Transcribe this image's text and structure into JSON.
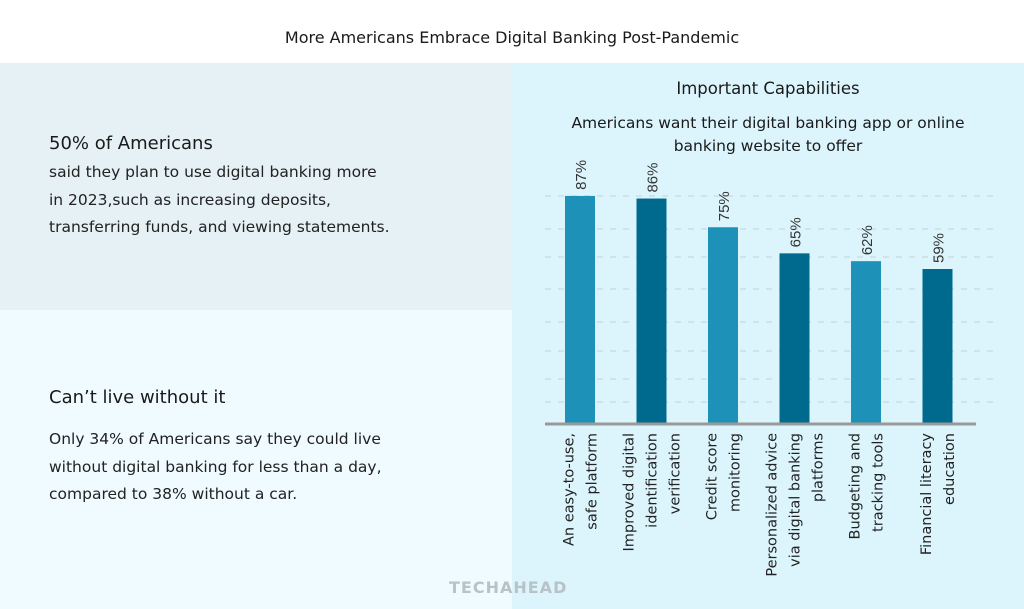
{
  "header": {
    "title": "More Americans Embrace Digital Banking Post-Pandemic"
  },
  "left": {
    "stat_heading": "50% of Americans",
    "stat_lines": [
      "said they plan to use digital banking more",
      "in 2023,such as increasing deposits,",
      "transferring funds, and viewing statements."
    ],
    "car_heading": "Can’t live without it",
    "car_lines": [
      "Only 34% of Americans say they could live",
      "without digital banking for less than a day,",
      "compared to 38% without a car."
    ]
  },
  "logo": "TECHAHEAD",
  "colors": {
    "light_bar": "#1e91b8",
    "dark_bar": "#006a8e",
    "axis": "#999999"
  },
  "chart_data": {
    "type": "bar",
    "title": "Important Capabilities",
    "subtitle_lines": [
      "Americans want their digital banking app or online",
      "banking website to offer"
    ],
    "categories": [
      [
        "An easy-to-use,",
        "safe platform"
      ],
      [
        "Improved digital",
        "identification",
        "verification"
      ],
      [
        "Credit score",
        "monitoring"
      ],
      [
        "Personalized advice",
        "via digital banking",
        "platforms"
      ],
      [
        "Budgeting and",
        "tracking tools"
      ],
      [
        "Financial literacy",
        "education"
      ]
    ],
    "values": [
      87,
      86,
      75,
      65,
      62,
      59
    ],
    "labels": [
      "87%",
      "86%",
      "75%",
      "65%",
      "62%",
      "59%"
    ],
    "unit": "%",
    "ylim": [
      0,
      100
    ],
    "grid": true
  }
}
